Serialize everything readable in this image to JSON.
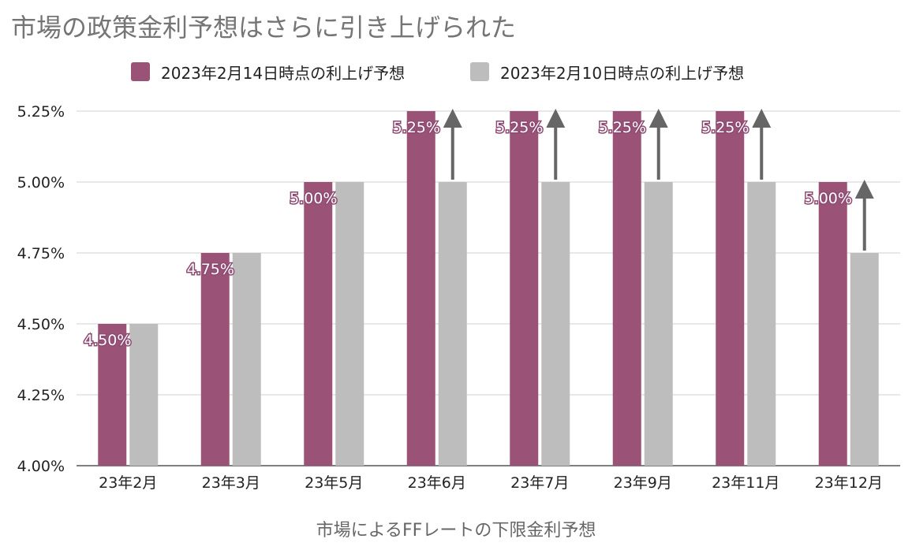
{
  "chart_data": {
    "type": "bar",
    "title": "市場の政策金利予想はさらに引き上げられた",
    "xlabel": "市場によるFFレートの下限金利予想",
    "ylabel": "",
    "ylim": [
      4.0,
      5.25
    ],
    "yticks": [
      "4.00%",
      "4.25%",
      "4.50%",
      "4.75%",
      "5.00%",
      "5.25%"
    ],
    "categories": [
      "23年2月",
      "23年3月",
      "23年5月",
      "23年6月",
      "23年7月",
      "23年9月",
      "23年11月",
      "23年12月"
    ],
    "series": [
      {
        "name": "2023年2月14日時点の利上げ予想",
        "color": "#9b5277",
        "values": [
          4.5,
          4.75,
          5.0,
          5.25,
          5.25,
          5.25,
          5.25,
          5.0
        ]
      },
      {
        "name": "2023年2月10日時点の利上げ予想",
        "color": "#bdbdbd",
        "values": [
          4.5,
          4.75,
          5.0,
          5.0,
          5.0,
          5.0,
          5.0,
          4.75
        ]
      }
    ],
    "data_labels": [
      "4.50%",
      "4.75%",
      "5.00%",
      "5.25%",
      "5.25%",
      "5.25%",
      "5.25%",
      "5.00%"
    ],
    "grid": true,
    "legend_position": "top-center",
    "annotations": "arrows showing increase from 2/10 forecast to 2/14 forecast",
    "arrow_color": "#666666"
  }
}
